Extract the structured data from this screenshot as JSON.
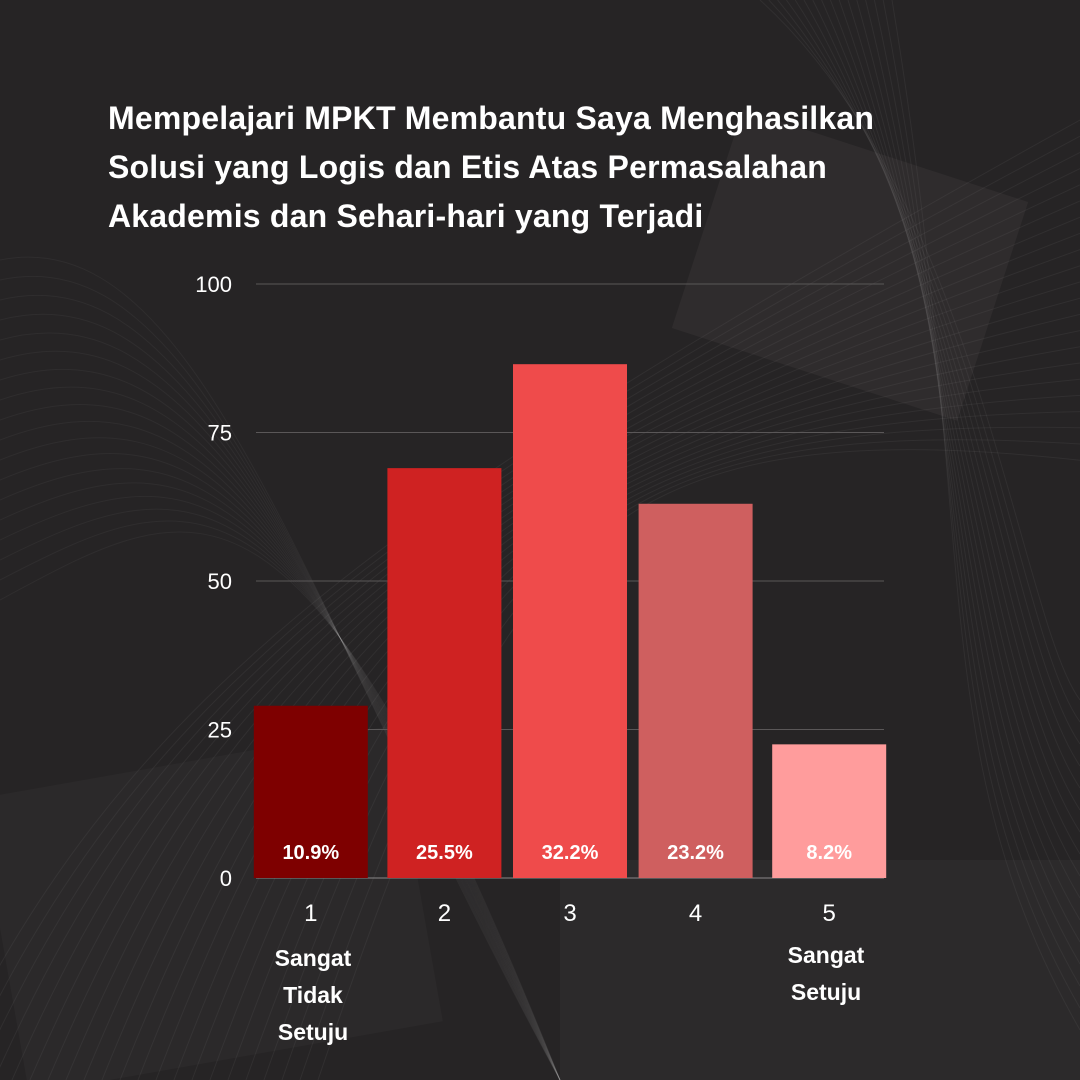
{
  "title_lines": [
    "Mempelajari MPKT Membantu Saya Menghasilkan",
    "Solusi yang Logis dan Etis Atas Permasalahan",
    "Akademis dan Sehari-hari yang Terjadi"
  ],
  "scale_labels": {
    "left": [
      "Sangat",
      "Tidak",
      "Setuju"
    ],
    "right": [
      "Sangat",
      "Setuju"
    ]
  },
  "colors": {
    "background": "#262425",
    "bars": [
      "#7e0000",
      "#cf2222",
      "#ef4b4b",
      "#cf5f5f",
      "#ff9c9c"
    ]
  },
  "chart_data": {
    "type": "bar",
    "title": "Mempelajari MPKT Membantu Saya Menghasilkan Solusi yang Logis dan Etis Atas Permasalahan Akademis dan Sehari-hari yang Terjadi",
    "categories": [
      "1",
      "2",
      "3",
      "4",
      "5"
    ],
    "values": [
      29,
      69,
      86.5,
      63,
      22.5
    ],
    "data_labels": [
      "10.9%",
      "25.5%",
      "32.2%",
      "23.2%",
      "8.2%"
    ],
    "yticks": [
      0,
      25,
      50,
      75,
      100
    ],
    "ylim": [
      0,
      100
    ],
    "xlabel": "",
    "ylabel": "",
    "grid": true,
    "legend": "none"
  }
}
